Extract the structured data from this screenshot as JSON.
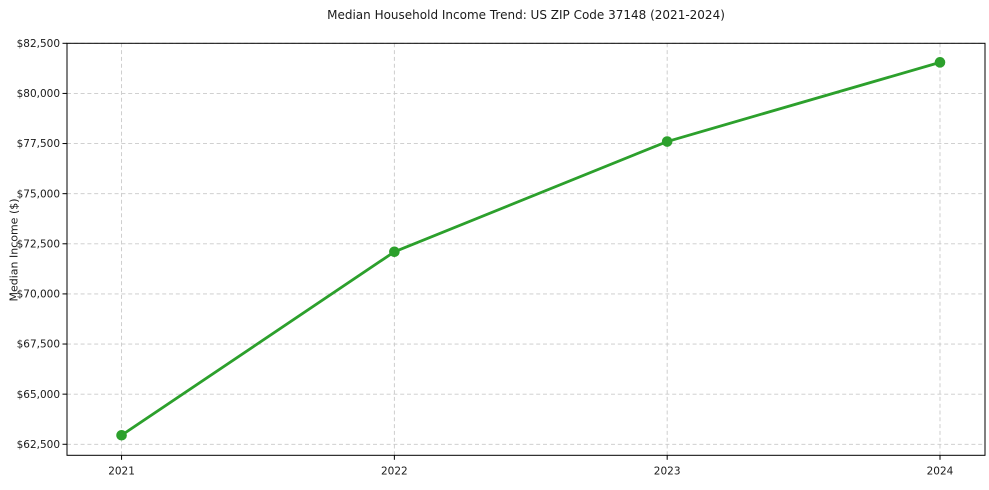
{
  "chart_data": {
    "type": "line",
    "title": "Median Household Income Trend: US ZIP Code 37148 (2021-2024)",
    "xlabel": "",
    "ylabel": "Median Income ($)",
    "x": [
      2021,
      2022,
      2023,
      2024
    ],
    "series": [
      {
        "name": "Median Household Income",
        "values": [
          62950,
          72100,
          77600,
          81550
        ]
      }
    ],
    "xticks": {
      "values": [
        2021,
        2022,
        2023,
        2024
      ],
      "labels": [
        "2021",
        "2022",
        "2023",
        "2024"
      ]
    },
    "yticks": {
      "values": [
        62500,
        65000,
        67500,
        70000,
        72500,
        75000,
        77500,
        80000,
        82500
      ],
      "labels": [
        "$62,500",
        "$65,000",
        "$67,500",
        "$70,000",
        "$72,500",
        "$75,000",
        "$77,500",
        "$80,000",
        "$82,500"
      ]
    },
    "xlim": [
      2020.8,
      2024.165
    ],
    "ylim": [
      61950,
      82500
    ],
    "grid": true,
    "grid_style": "dashed",
    "legend": false,
    "colors": {
      "line": "#2ca02c",
      "marker": "#2ca02c",
      "grid": "#c9c9c9",
      "spine": "#000000",
      "text": "#1a1a1a",
      "background": "#ffffff"
    }
  }
}
